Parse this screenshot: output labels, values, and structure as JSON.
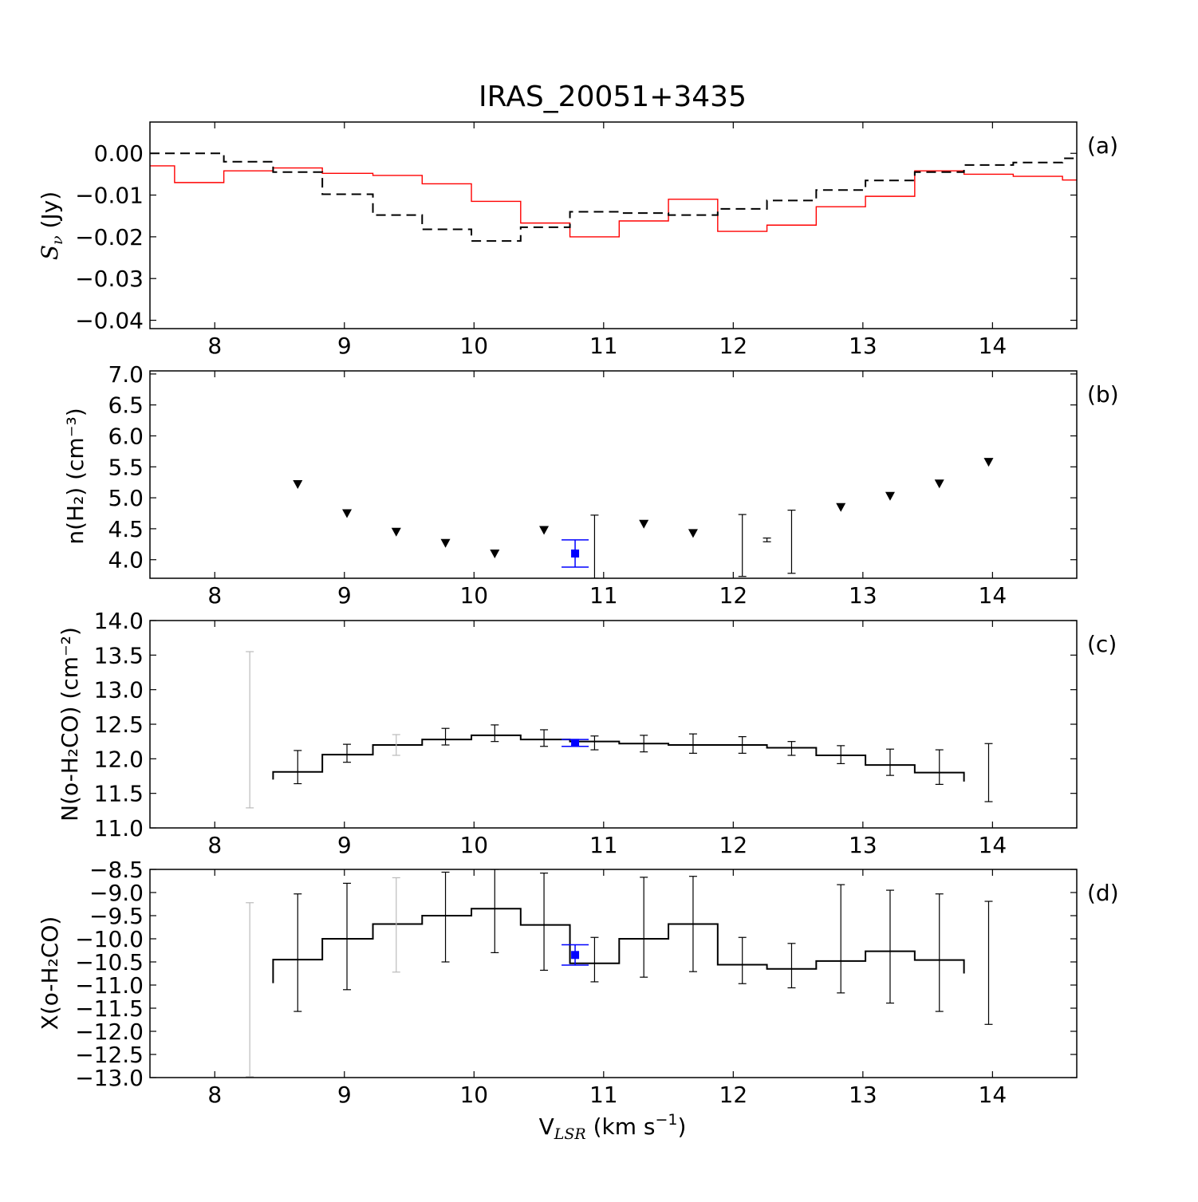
{
  "title": "IRAS_20051+3435",
  "xlabel": "V_LSR (km s^-1)",
  "xlabel_parts": {
    "base": "V",
    "sub": "LSR",
    "mid": " (km s",
    "sup": "−1",
    "end": ")"
  },
  "colors": {
    "red": "#ff0000",
    "blue": "#0000ff",
    "black": "#000000",
    "grey": "#bbbbbb"
  },
  "chart_data": [
    {
      "panel": "a",
      "type": "line",
      "step": true,
      "panel_label": "(a)",
      "ylabel": "S_ν (Jy)",
      "xlim": [
        7.5,
        14.65
      ],
      "ylim": [
        -0.042,
        0.0075
      ],
      "xticks": [
        8,
        9,
        10,
        11,
        12,
        13,
        14
      ],
      "yticks": [
        0.0,
        -0.01,
        -0.02,
        -0.03,
        -0.04
      ],
      "ytick_labels": [
        "0.00",
        "−0.01",
        "−0.02",
        "−0.03",
        "−0.04"
      ],
      "series": [
        {
          "name": "red_spectrum",
          "style": "solid",
          "color": "#ff0000",
          "edges": [
            7.5,
            7.69,
            8.07,
            8.45,
            8.83,
            9.22,
            9.6,
            9.98,
            10.36,
            10.74,
            11.12,
            11.5,
            11.88,
            12.26,
            12.64,
            13.02,
            13.4,
            13.78,
            14.16,
            14.54,
            14.65
          ],
          "values": [
            -0.003,
            -0.007,
            -0.0042,
            -0.0035,
            -0.0048,
            -0.0053,
            -0.0073,
            -0.0115,
            -0.0167,
            -0.02,
            -0.0162,
            -0.011,
            -0.0187,
            -0.0172,
            -0.0128,
            -0.0103,
            -0.0042,
            -0.005,
            -0.0055,
            -0.0064
          ]
        },
        {
          "name": "black_dashed_spectrum",
          "style": "dashed",
          "color": "#000000",
          "edges": [
            7.5,
            8.07,
            8.45,
            8.83,
            9.22,
            9.6,
            9.98,
            10.36,
            10.74,
            11.12,
            11.5,
            11.88,
            12.26,
            12.64,
            13.02,
            13.4,
            13.78,
            14.16,
            14.54,
            14.65
          ],
          "values": [
            0.0,
            -0.002,
            -0.0045,
            -0.0098,
            -0.0148,
            -0.0182,
            -0.021,
            -0.0177,
            -0.014,
            -0.0143,
            -0.0148,
            -0.0133,
            -0.0113,
            -0.0088,
            -0.0065,
            -0.0045,
            -0.0028,
            -0.0022,
            -0.0012
          ]
        }
      ]
    },
    {
      "panel": "b",
      "type": "scatter",
      "panel_label": "(b)",
      "ylabel": "n(H₂) (cm⁻³)",
      "xlim": [
        7.5,
        14.65
      ],
      "ylim": [
        3.7,
        7.05
      ],
      "xticks": [
        8,
        9,
        10,
        11,
        12,
        13,
        14
      ],
      "yticks": [
        4.0,
        4.5,
        5.0,
        5.5,
        6.0,
        6.5,
        7.0
      ],
      "ytick_labels": [
        "4.0",
        "4.5",
        "5.0",
        "5.5",
        "6.0",
        "6.5",
        "7.0"
      ],
      "upper_limits": {
        "marker": "triangle-down",
        "x": [
          8.64,
          9.02,
          9.4,
          9.78,
          10.16,
          10.54,
          11.31,
          11.69,
          12.83,
          13.21,
          13.59,
          13.97
        ],
        "y": [
          5.22,
          4.75,
          4.45,
          4.27,
          4.1,
          4.48,
          4.58,
          4.43,
          4.85,
          5.03,
          5.23,
          5.58
        ]
      },
      "error_points": {
        "x": [
          10.93,
          12.07,
          12.26,
          12.45
        ],
        "y": [
          4.28,
          4.25,
          4.32,
          4.33
        ],
        "err_low": [
          0.58,
          0.52,
          0.03,
          0.55
        ],
        "err_high": [
          0.44,
          0.48,
          0.03,
          0.47
        ]
      },
      "highlight": {
        "x": 10.78,
        "y": 4.1,
        "err": 0.22,
        "color": "#0000ff"
      }
    },
    {
      "panel": "c",
      "type": "line",
      "step": true,
      "panel_label": "(c)",
      "ylabel": "N(o-H₂CO) (cm⁻²)",
      "xlim": [
        7.5,
        14.65
      ],
      "ylim": [
        11.0,
        14.0
      ],
      "xticks": [
        8,
        9,
        10,
        11,
        12,
        13,
        14
      ],
      "yticks": [
        11.0,
        11.5,
        12.0,
        12.5,
        13.0,
        13.5,
        14.0
      ],
      "ytick_labels": [
        "11.0",
        "11.5",
        "12.0",
        "12.5",
        "13.0",
        "13.5",
        "14.0"
      ],
      "step_edges": [
        8.45,
        8.83,
        9.22,
        9.6,
        9.98,
        10.36,
        10.74,
        11.12,
        11.5,
        11.88,
        12.26,
        12.64,
        13.02,
        13.4,
        13.78
      ],
      "step_values": [
        11.81,
        12.06,
        12.2,
        12.28,
        12.34,
        12.28,
        12.25,
        12.22,
        12.2,
        12.2,
        12.16,
        12.05,
        11.91,
        11.8
      ],
      "step_ends": [
        11.7,
        11.67
      ],
      "error_points": {
        "x": [
          8.27,
          8.64,
          9.02,
          9.4,
          9.78,
          10.16,
          10.54,
          10.93,
          11.31,
          11.69,
          12.07,
          12.45,
          12.83,
          13.21,
          13.59,
          13.97
        ],
        "y": [
          12.42,
          11.88,
          12.08,
          12.2,
          12.32,
          12.37,
          12.3,
          12.23,
          12.22,
          12.22,
          12.2,
          12.15,
          12.06,
          11.95,
          11.88,
          11.8
        ],
        "err": [
          1.13,
          0.24,
          0.13,
          0.15,
          0.12,
          0.12,
          0.12,
          0.1,
          0.12,
          0.14,
          0.12,
          0.1,
          0.13,
          0.19,
          0.25,
          0.42
        ],
        "faint": [
          true,
          false,
          false,
          true,
          false,
          false,
          false,
          false,
          false,
          false,
          false,
          false,
          false,
          false,
          false,
          false
        ]
      },
      "highlight": {
        "x": 10.78,
        "y": 12.23,
        "err": 0.05,
        "color": "#0000ff"
      }
    },
    {
      "panel": "d",
      "type": "line",
      "step": true,
      "panel_label": "(d)",
      "ylabel": "X(o-H₂CO)",
      "xlim": [
        7.5,
        14.65
      ],
      "ylim": [
        -13.0,
        -8.5
      ],
      "xticks": [
        8,
        9,
        10,
        11,
        12,
        13,
        14
      ],
      "yticks": [
        -8.5,
        -9.0,
        -9.5,
        -10.0,
        -10.5,
        -11.0,
        -11.5,
        -12.0,
        -12.5,
        -13.0
      ],
      "ytick_labels": [
        "−8.5",
        "−9.0",
        "−9.5",
        "−10.0",
        "−10.5",
        "−11.0",
        "−11.5",
        "−12.0",
        "−12.5",
        "−13.0"
      ],
      "step_edges": [
        8.45,
        8.83,
        9.22,
        9.6,
        9.98,
        10.36,
        10.74,
        11.12,
        11.5,
        11.88,
        12.26,
        12.64,
        13.02,
        13.4,
        13.78
      ],
      "step_values": [
        -10.45,
        -10.0,
        -9.68,
        -9.5,
        -9.35,
        -9.7,
        -10.53,
        -10.0,
        -9.68,
        -10.56,
        -10.65,
        -10.48,
        -10.27,
        -10.46
      ],
      "step_ends": [
        -10.96,
        -10.75
      ],
      "error_points": {
        "x": [
          8.27,
          8.64,
          9.02,
          9.4,
          9.78,
          10.16,
          10.54,
          10.93,
          11.31,
          11.69,
          12.07,
          12.45,
          12.83,
          13.21,
          13.59,
          13.97
        ],
        "y": [
          -11.1,
          -10.3,
          -9.95,
          -9.7,
          -9.53,
          -9.4,
          -9.63,
          -10.45,
          -9.75,
          -9.68,
          -10.47,
          -10.58,
          -10.0,
          -10.17,
          -10.3,
          -10.52
        ],
        "err": [
          1.88,
          1.27,
          1.15,
          1.02,
          0.97,
          0.9,
          1.05,
          0.48,
          1.08,
          1.03,
          0.5,
          0.48,
          1.17,
          1.22,
          1.27,
          1.33
        ],
        "faint": [
          true,
          false,
          false,
          true,
          false,
          false,
          false,
          false,
          false,
          false,
          false,
          false,
          false,
          false,
          false,
          false
        ]
      },
      "highlight": {
        "x": 10.78,
        "y": -10.35,
        "err": 0.22,
        "color": "#0000ff"
      }
    }
  ]
}
